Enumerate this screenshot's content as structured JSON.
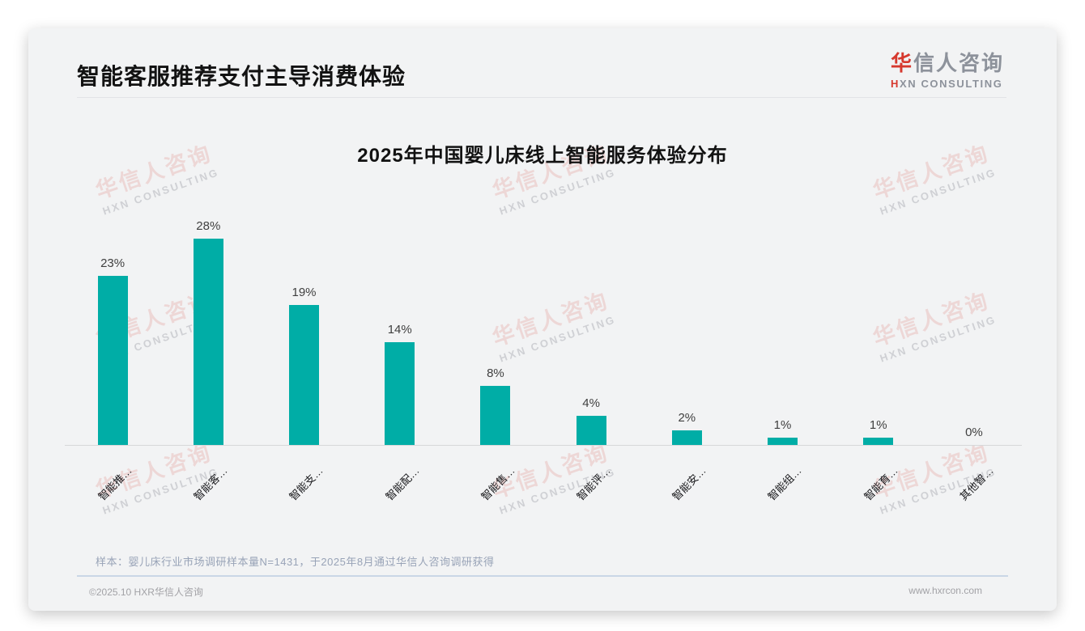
{
  "page": {
    "title": "智能客服推荐支付主导消费体验"
  },
  "logo": {
    "brand_first_char": "华",
    "brand_rest": "信人咨询",
    "subtitle_first_char": "H",
    "subtitle_rest": "XN CONSULTING"
  },
  "watermark": {
    "line1": "华信人咨询",
    "line2": "HXN CONSULTING"
  },
  "chart_data": {
    "type": "bar",
    "title": "2025年中国婴儿床线上智能服务体验分布",
    "categories": [
      "智能推…",
      "智能客…",
      "智能支…",
      "智能配…",
      "智能售…",
      "智能评…",
      "智能安…",
      "智能组…",
      "智能育…",
      "其他智…"
    ],
    "values": [
      23,
      28,
      19,
      14,
      8,
      4,
      2,
      1,
      1,
      0
    ],
    "value_labels": [
      "23%",
      "28%",
      "19%",
      "14%",
      "8%",
      "4%",
      "2%",
      "1%",
      "1%",
      "0%"
    ],
    "unit": "%",
    "bar_color": "#00ADA6",
    "value_label_color": "#3f3f3f",
    "ylim": [
      0,
      30
    ],
    "grid": false,
    "legend": false,
    "x_label_rotation": -45
  },
  "footnote": "样本：婴儿床行业市场调研样本量N=1431，于2025年8月通过华信人咨询调研获得",
  "footer": {
    "copyright": "©2025.10 HXR华信人咨询",
    "website": "www.hxrcon.com"
  },
  "colors": {
    "bar": "#00ADA6",
    "accent_red": "#D6392E",
    "card_background": "#F2F3F4"
  }
}
